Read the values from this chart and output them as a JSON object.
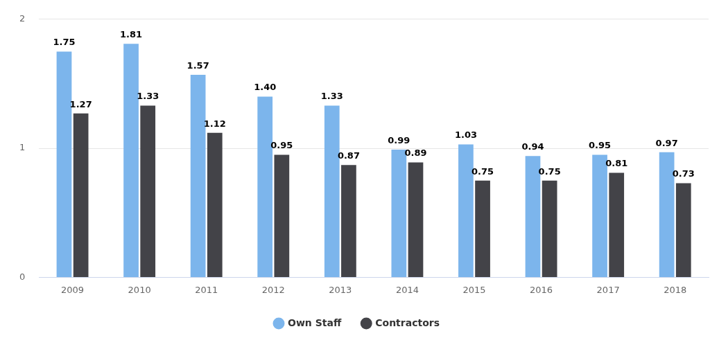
{
  "chart_data": {
    "type": "bar",
    "categories": [
      "2009",
      "2010",
      "2011",
      "2012",
      "2013",
      "2014",
      "2015",
      "2016",
      "2017",
      "2018"
    ],
    "series": [
      {
        "name": "Own Staff",
        "color": "#7cb5ec",
        "values": [
          1.75,
          1.81,
          1.57,
          1.4,
          1.33,
          0.99,
          1.03,
          0.94,
          0.95,
          0.97
        ],
        "value_labels": [
          "1.75",
          "1.81",
          "1.57",
          "1.40",
          "1.33",
          "0.99",
          "1.03",
          "0.94",
          "0.95",
          "0.97"
        ]
      },
      {
        "name": "Contractors",
        "color": "#434348",
        "values": [
          1.27,
          1.33,
          1.12,
          0.95,
          0.87,
          0.89,
          0.75,
          0.75,
          0.81,
          0.73
        ],
        "value_labels": [
          "1.27",
          "1.33",
          "1.12",
          "0.95",
          "0.87",
          "0.89",
          "0.75",
          "0.75",
          "0.81",
          "0.73"
        ]
      }
    ],
    "ylim": [
      0,
      2
    ],
    "yticks": [
      0,
      1,
      2
    ],
    "grid": "y",
    "legend": "bottom"
  }
}
